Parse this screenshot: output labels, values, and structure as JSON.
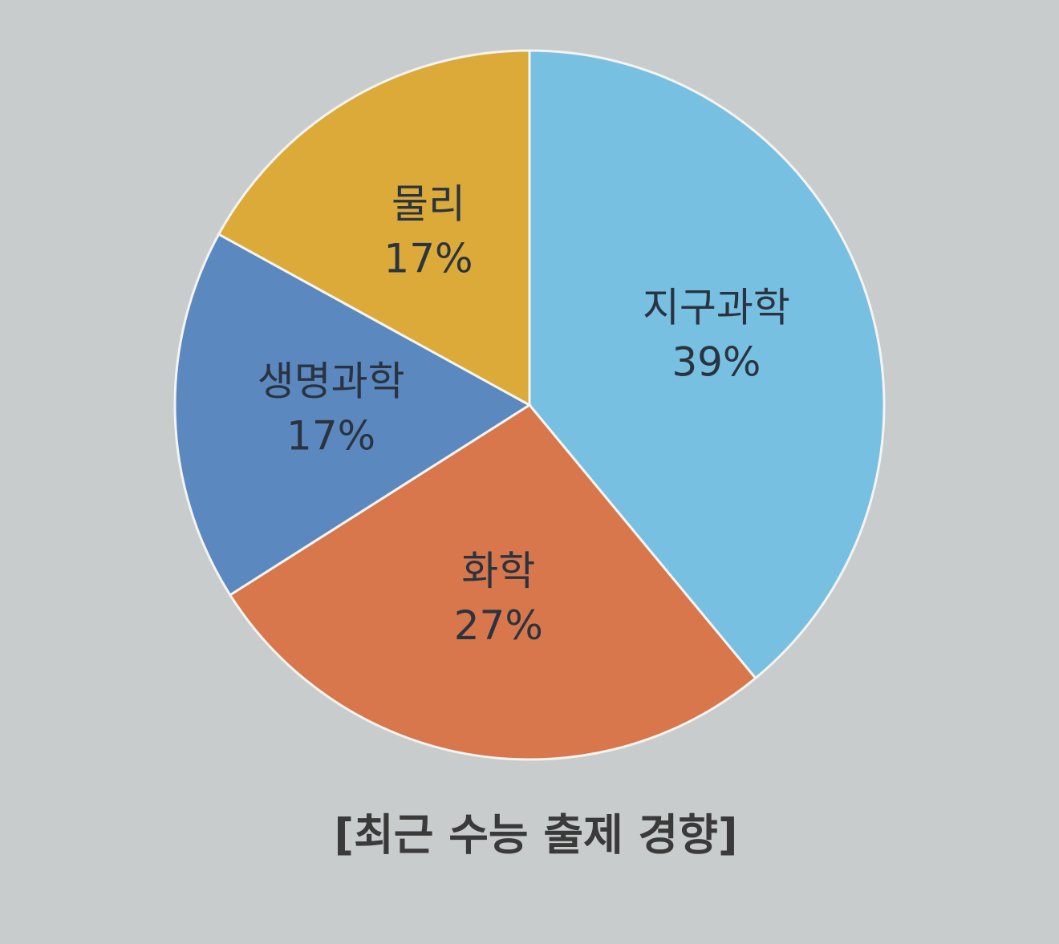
{
  "chart_data": {
    "type": "pie",
    "title": "[최근 수능 출제 경향]",
    "categories": [
      "지구과학",
      "화학",
      "생명과학",
      "물리"
    ],
    "values": [
      39,
      27,
      17,
      17
    ],
    "value_labels": [
      "39%",
      "27%",
      "17%",
      "17%"
    ],
    "colors": [
      "#78c0e2",
      "#d8764c",
      "#5c88c0",
      "#dcaa38"
    ]
  }
}
